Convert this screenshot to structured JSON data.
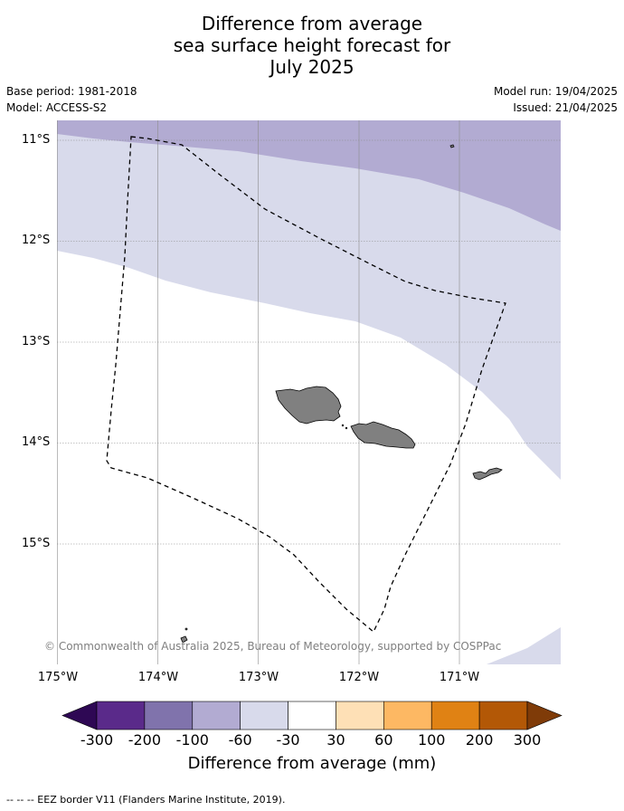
{
  "title": {
    "line1": "Difference from average",
    "line2": "sea surface height forecast for",
    "line3": "July 2025"
  },
  "meta": {
    "base_period": "Base period: 1981-2018",
    "model": "Model: ACCESS-S2",
    "model_run": "Model run: 19/04/2025",
    "issued": "Issued: 21/04/2025"
  },
  "map": {
    "latitudes": [
      "11°S",
      "12°S",
      "13°S",
      "14°S",
      "15°S"
    ],
    "longitudes": [
      "175°W",
      "174°W",
      "173°W",
      "172°W",
      "171°W"
    ],
    "copyright": "© Commonwealth of Australia 2025, Bureau of Meteorology, supported by COSPPac"
  },
  "colorbar": {
    "ticks": [
      "-300",
      "-200",
      "-100",
      "-60",
      "-30",
      "30",
      "60",
      "100",
      "200",
      "300"
    ],
    "colors": [
      "#2e0854",
      "#5a2a8a",
      "#8073ac",
      "#b2abd2",
      "#d8daeb",
      "#ffffff",
      "#fee0b6",
      "#fdb863",
      "#e08214",
      "#b35806",
      "#7f3b08"
    ],
    "label": "Difference from average (mm)"
  },
  "footnote": "--  --  -- EEZ border V11 (Flanders Marine Institute, 2019)."
}
